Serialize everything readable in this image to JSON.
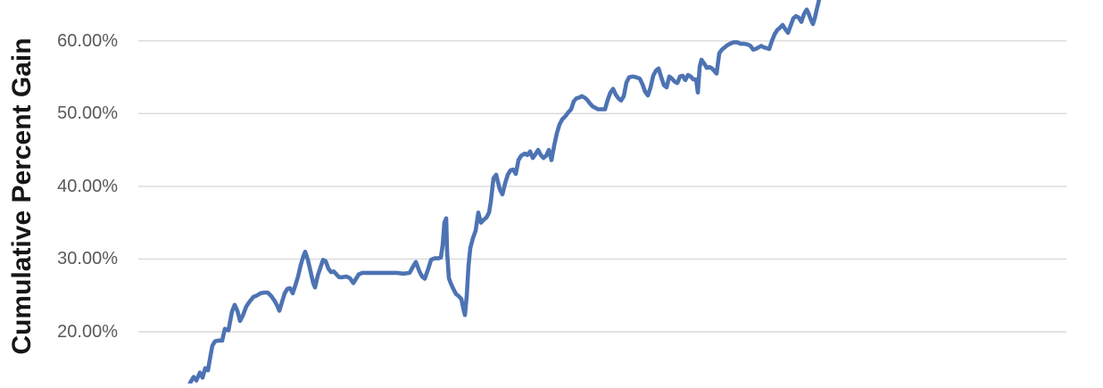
{
  "chart_data": {
    "type": "line",
    "title": "",
    "xlabel": "",
    "ylabel": "Cumulative Percent Gain",
    "grid": true,
    "legend": false,
    "x_axis_labels_visible": false,
    "visible_y_range_pct": [
      12.9,
      65.6
    ],
    "y_ticks": [
      {
        "label": "60.00%",
        "value": 60
      },
      {
        "label": "50.00%",
        "value": 50
      },
      {
        "label": "40.00%",
        "value": 40
      },
      {
        "label": "30.00%",
        "value": 30
      },
      {
        "label": "20.00%",
        "value": 20
      }
    ],
    "series": [
      {
        "name": "Cumulative Percent Gain",
        "color": "#4d73b3",
        "x_unit": "px",
        "y_unit": "percent",
        "points": [
          [
            211,
            12.4
          ],
          [
            214,
            13.2
          ],
          [
            217,
            13.8
          ],
          [
            220,
            13.3
          ],
          [
            224,
            14.4
          ],
          [
            227,
            13.7
          ],
          [
            230,
            15.0
          ],
          [
            233,
            14.7
          ],
          [
            236,
            16.8
          ],
          [
            238,
            18.1
          ],
          [
            241,
            18.7
          ],
          [
            245,
            18.8
          ],
          [
            249,
            18.8
          ],
          [
            252,
            20.4
          ],
          [
            256,
            20.2
          ],
          [
            260,
            22.8
          ],
          [
            263,
            23.7
          ],
          [
            266,
            22.9
          ],
          [
            269,
            21.5
          ],
          [
            272,
            22.2
          ],
          [
            276,
            23.5
          ],
          [
            280,
            24.2
          ],
          [
            284,
            24.8
          ],
          [
            288,
            25.0
          ],
          [
            292,
            25.3
          ],
          [
            296,
            25.4
          ],
          [
            300,
            25.4
          ],
          [
            304,
            24.9
          ],
          [
            308,
            24.2
          ],
          [
            311,
            23.5
          ],
          [
            313,
            22.9
          ],
          [
            316,
            24.1
          ],
          [
            319,
            25.3
          ],
          [
            322,
            25.9
          ],
          [
            325,
            26.0
          ],
          [
            328,
            25.3
          ],
          [
            331,
            26.4
          ],
          [
            334,
            27.6
          ],
          [
            337,
            29.2
          ],
          [
            340,
            30.4
          ],
          [
            342,
            31.0
          ],
          [
            345,
            29.9
          ],
          [
            348,
            28.3
          ],
          [
            351,
            26.7
          ],
          [
            353,
            26.1
          ],
          [
            356,
            27.7
          ],
          [
            359,
            28.8
          ],
          [
            362,
            29.9
          ],
          [
            365,
            29.7
          ],
          [
            368,
            28.7
          ],
          [
            371,
            28.2
          ],
          [
            374,
            28.3
          ],
          [
            377,
            27.9
          ],
          [
            380,
            27.5
          ],
          [
            384,
            27.5
          ],
          [
            388,
            27.6
          ],
          [
            392,
            27.4
          ],
          [
            396,
            26.7
          ],
          [
            399,
            27.3
          ],
          [
            402,
            27.9
          ],
          [
            406,
            28.1
          ],
          [
            412,
            28.1
          ],
          [
            420,
            28.1
          ],
          [
            428,
            28.1
          ],
          [
            436,
            28.1
          ],
          [
            444,
            28.1
          ],
          [
            452,
            28.0
          ],
          [
            459,
            28.1
          ],
          [
            463,
            29.0
          ],
          [
            466,
            29.6
          ],
          [
            470,
            28.3
          ],
          [
            473,
            27.6
          ],
          [
            476,
            27.3
          ],
          [
            480,
            28.7
          ],
          [
            483,
            29.9
          ],
          [
            487,
            30.1
          ],
          [
            491,
            30.1
          ],
          [
            494,
            30.2
          ],
          [
            496,
            31.9
          ],
          [
            498,
            35.0
          ],
          [
            500,
            35.6
          ],
          [
            501,
            31.0
          ],
          [
            503,
            27.4
          ],
          [
            505,
            26.7
          ],
          [
            508,
            25.9
          ],
          [
            511,
            25.2
          ],
          [
            514,
            24.9
          ],
          [
            517,
            24.5
          ],
          [
            519,
            23.3
          ],
          [
            521,
            22.3
          ],
          [
            523,
            24.9
          ],
          [
            525,
            29.1
          ],
          [
            527,
            31.5
          ],
          [
            530,
            32.9
          ],
          [
            533,
            33.9
          ],
          [
            536,
            36.4
          ],
          [
            539,
            35.0
          ],
          [
            542,
            35.4
          ],
          [
            545,
            35.7
          ],
          [
            548,
            36.4
          ],
          [
            550,
            37.9
          ],
          [
            553,
            41.1
          ],
          [
            556,
            41.6
          ],
          [
            560,
            39.6
          ],
          [
            563,
            38.9
          ],
          [
            566,
            40.4
          ],
          [
            569,
            41.6
          ],
          [
            572,
            42.2
          ],
          [
            575,
            42.3
          ],
          [
            578,
            41.7
          ],
          [
            581,
            43.6
          ],
          [
            584,
            44.2
          ],
          [
            588,
            44.5
          ],
          [
            591,
            44.3
          ],
          [
            594,
            44.8
          ],
          [
            597,
            43.9
          ],
          [
            600,
            44.4
          ],
          [
            603,
            45.0
          ],
          [
            606,
            44.3
          ],
          [
            609,
            43.9
          ],
          [
            612,
            44.2
          ],
          [
            615,
            45.0
          ],
          [
            618,
            43.6
          ],
          [
            621,
            45.6
          ],
          [
            624,
            47.3
          ],
          [
            627,
            48.5
          ],
          [
            630,
            49.2
          ],
          [
            634,
            49.7
          ],
          [
            637,
            50.2
          ],
          [
            640,
            50.6
          ],
          [
            643,
            51.7
          ],
          [
            646,
            52.1
          ],
          [
            649,
            52.2
          ],
          [
            652,
            52.4
          ],
          [
            655,
            52.2
          ],
          [
            658,
            51.9
          ],
          [
            661,
            51.4
          ],
          [
            664,
            51.0
          ],
          [
            667,
            50.8
          ],
          [
            670,
            50.6
          ],
          [
            674,
            50.6
          ],
          [
            678,
            50.6
          ],
          [
            681,
            51.9
          ],
          [
            684,
            52.9
          ],
          [
            687,
            53.4
          ],
          [
            690,
            52.6
          ],
          [
            693,
            52.1
          ],
          [
            696,
            51.8
          ],
          [
            699,
            52.4
          ],
          [
            702,
            54.3
          ],
          [
            705,
            55.0
          ],
          [
            709,
            55.1
          ],
          [
            713,
            55.0
          ],
          [
            717,
            54.8
          ],
          [
            720,
            54.0
          ],
          [
            723,
            53.0
          ],
          [
            726,
            52.5
          ],
          [
            729,
            53.6
          ],
          [
            732,
            55.2
          ],
          [
            735,
            55.9
          ],
          [
            738,
            56.2
          ],
          [
            741,
            55.0
          ],
          [
            744,
            53.9
          ],
          [
            747,
            53.6
          ],
          [
            750,
            55.1
          ],
          [
            753,
            54.8
          ],
          [
            756,
            54.4
          ],
          [
            759,
            54.2
          ],
          [
            762,
            55.1
          ],
          [
            765,
            55.2
          ],
          [
            768,
            54.6
          ],
          [
            771,
            55.3
          ],
          [
            774,
            55.1
          ],
          [
            777,
            54.7
          ],
          [
            780,
            54.7
          ],
          [
            782,
            52.9
          ],
          [
            784,
            56.4
          ],
          [
            786,
            57.4
          ],
          [
            789,
            56.9
          ],
          [
            792,
            56.3
          ],
          [
            795,
            56.4
          ],
          [
            798,
            56.2
          ],
          [
            801,
            55.8
          ],
          [
            803,
            55.5
          ],
          [
            806,
            58.3
          ],
          [
            809,
            58.8
          ],
          [
            812,
            59.1
          ],
          [
            815,
            59.4
          ],
          [
            818,
            59.6
          ],
          [
            822,
            59.8
          ],
          [
            826,
            59.8
          ],
          [
            830,
            59.6
          ],
          [
            834,
            59.6
          ],
          [
            838,
            59.5
          ],
          [
            841,
            59.3
          ],
          [
            844,
            58.8
          ],
          [
            847,
            58.9
          ],
          [
            850,
            59.1
          ],
          [
            853,
            59.3
          ],
          [
            856,
            59.1
          ],
          [
            859,
            59.0
          ],
          [
            862,
            58.9
          ],
          [
            865,
            60.0
          ],
          [
            868,
            60.9
          ],
          [
            871,
            61.5
          ],
          [
            874,
            61.8
          ],
          [
            877,
            62.2
          ],
          [
            880,
            61.6
          ],
          [
            883,
            61.1
          ],
          [
            886,
            62.1
          ],
          [
            889,
            63.1
          ],
          [
            892,
            63.4
          ],
          [
            895,
            63.2
          ],
          [
            898,
            62.6
          ],
          [
            901,
            63.7
          ],
          [
            904,
            64.3
          ],
          [
            906,
            63.8
          ],
          [
            909,
            62.8
          ],
          [
            911,
            62.3
          ],
          [
            913,
            63.1
          ],
          [
            915,
            64.2
          ],
          [
            917,
            65.2
          ],
          [
            919,
            66.3
          ]
        ]
      }
    ]
  },
  "colors": {
    "background": "#ffffff",
    "gridline": "#d9d9d9",
    "tick_label": "#595959",
    "axis_title": "#161616",
    "line": "#4d73b3"
  }
}
